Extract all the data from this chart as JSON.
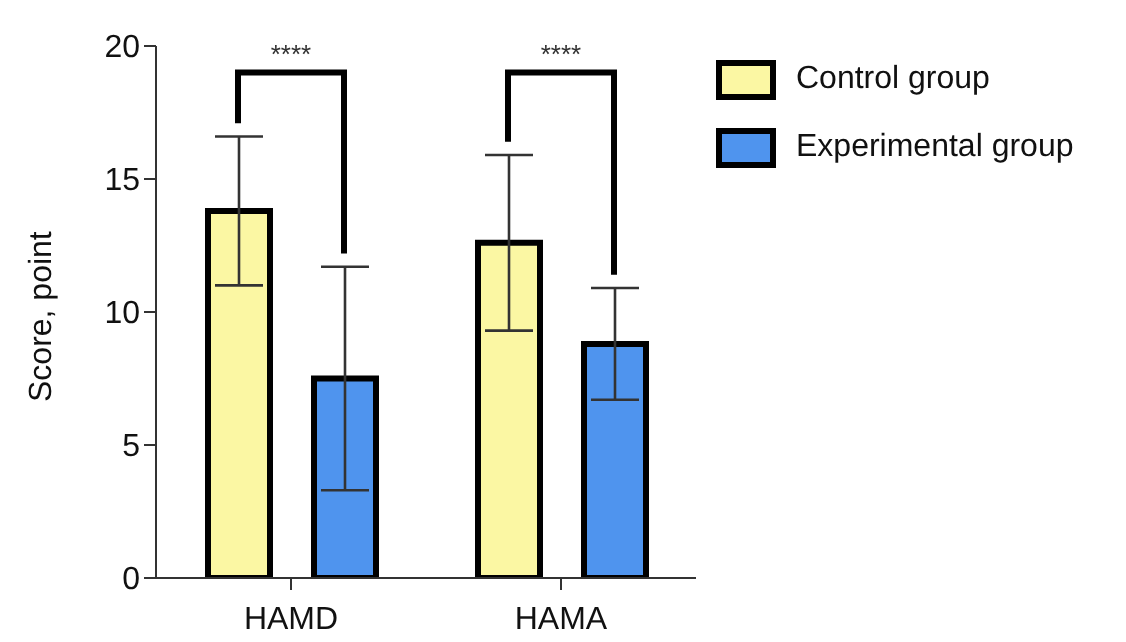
{
  "chart_data": {
    "type": "bar",
    "ylabel": "Score, point",
    "categories": [
      "HAMD",
      "HAMA"
    ],
    "series": [
      {
        "name": "Control group",
        "color": "#fbf7a3",
        "values": [
          13.8,
          12.6
        ],
        "errors": [
          2.8,
          3.3
        ]
      },
      {
        "name": "Experimental group",
        "color": "#4f94ee",
        "values": [
          7.5,
          8.8
        ],
        "errors": [
          4.2,
          2.1
        ]
      }
    ],
    "ylim": [
      0,
      20
    ],
    "yticks": [
      0,
      5,
      10,
      15,
      20
    ],
    "legend": "top right",
    "annotations": [
      "****",
      "****"
    ]
  }
}
